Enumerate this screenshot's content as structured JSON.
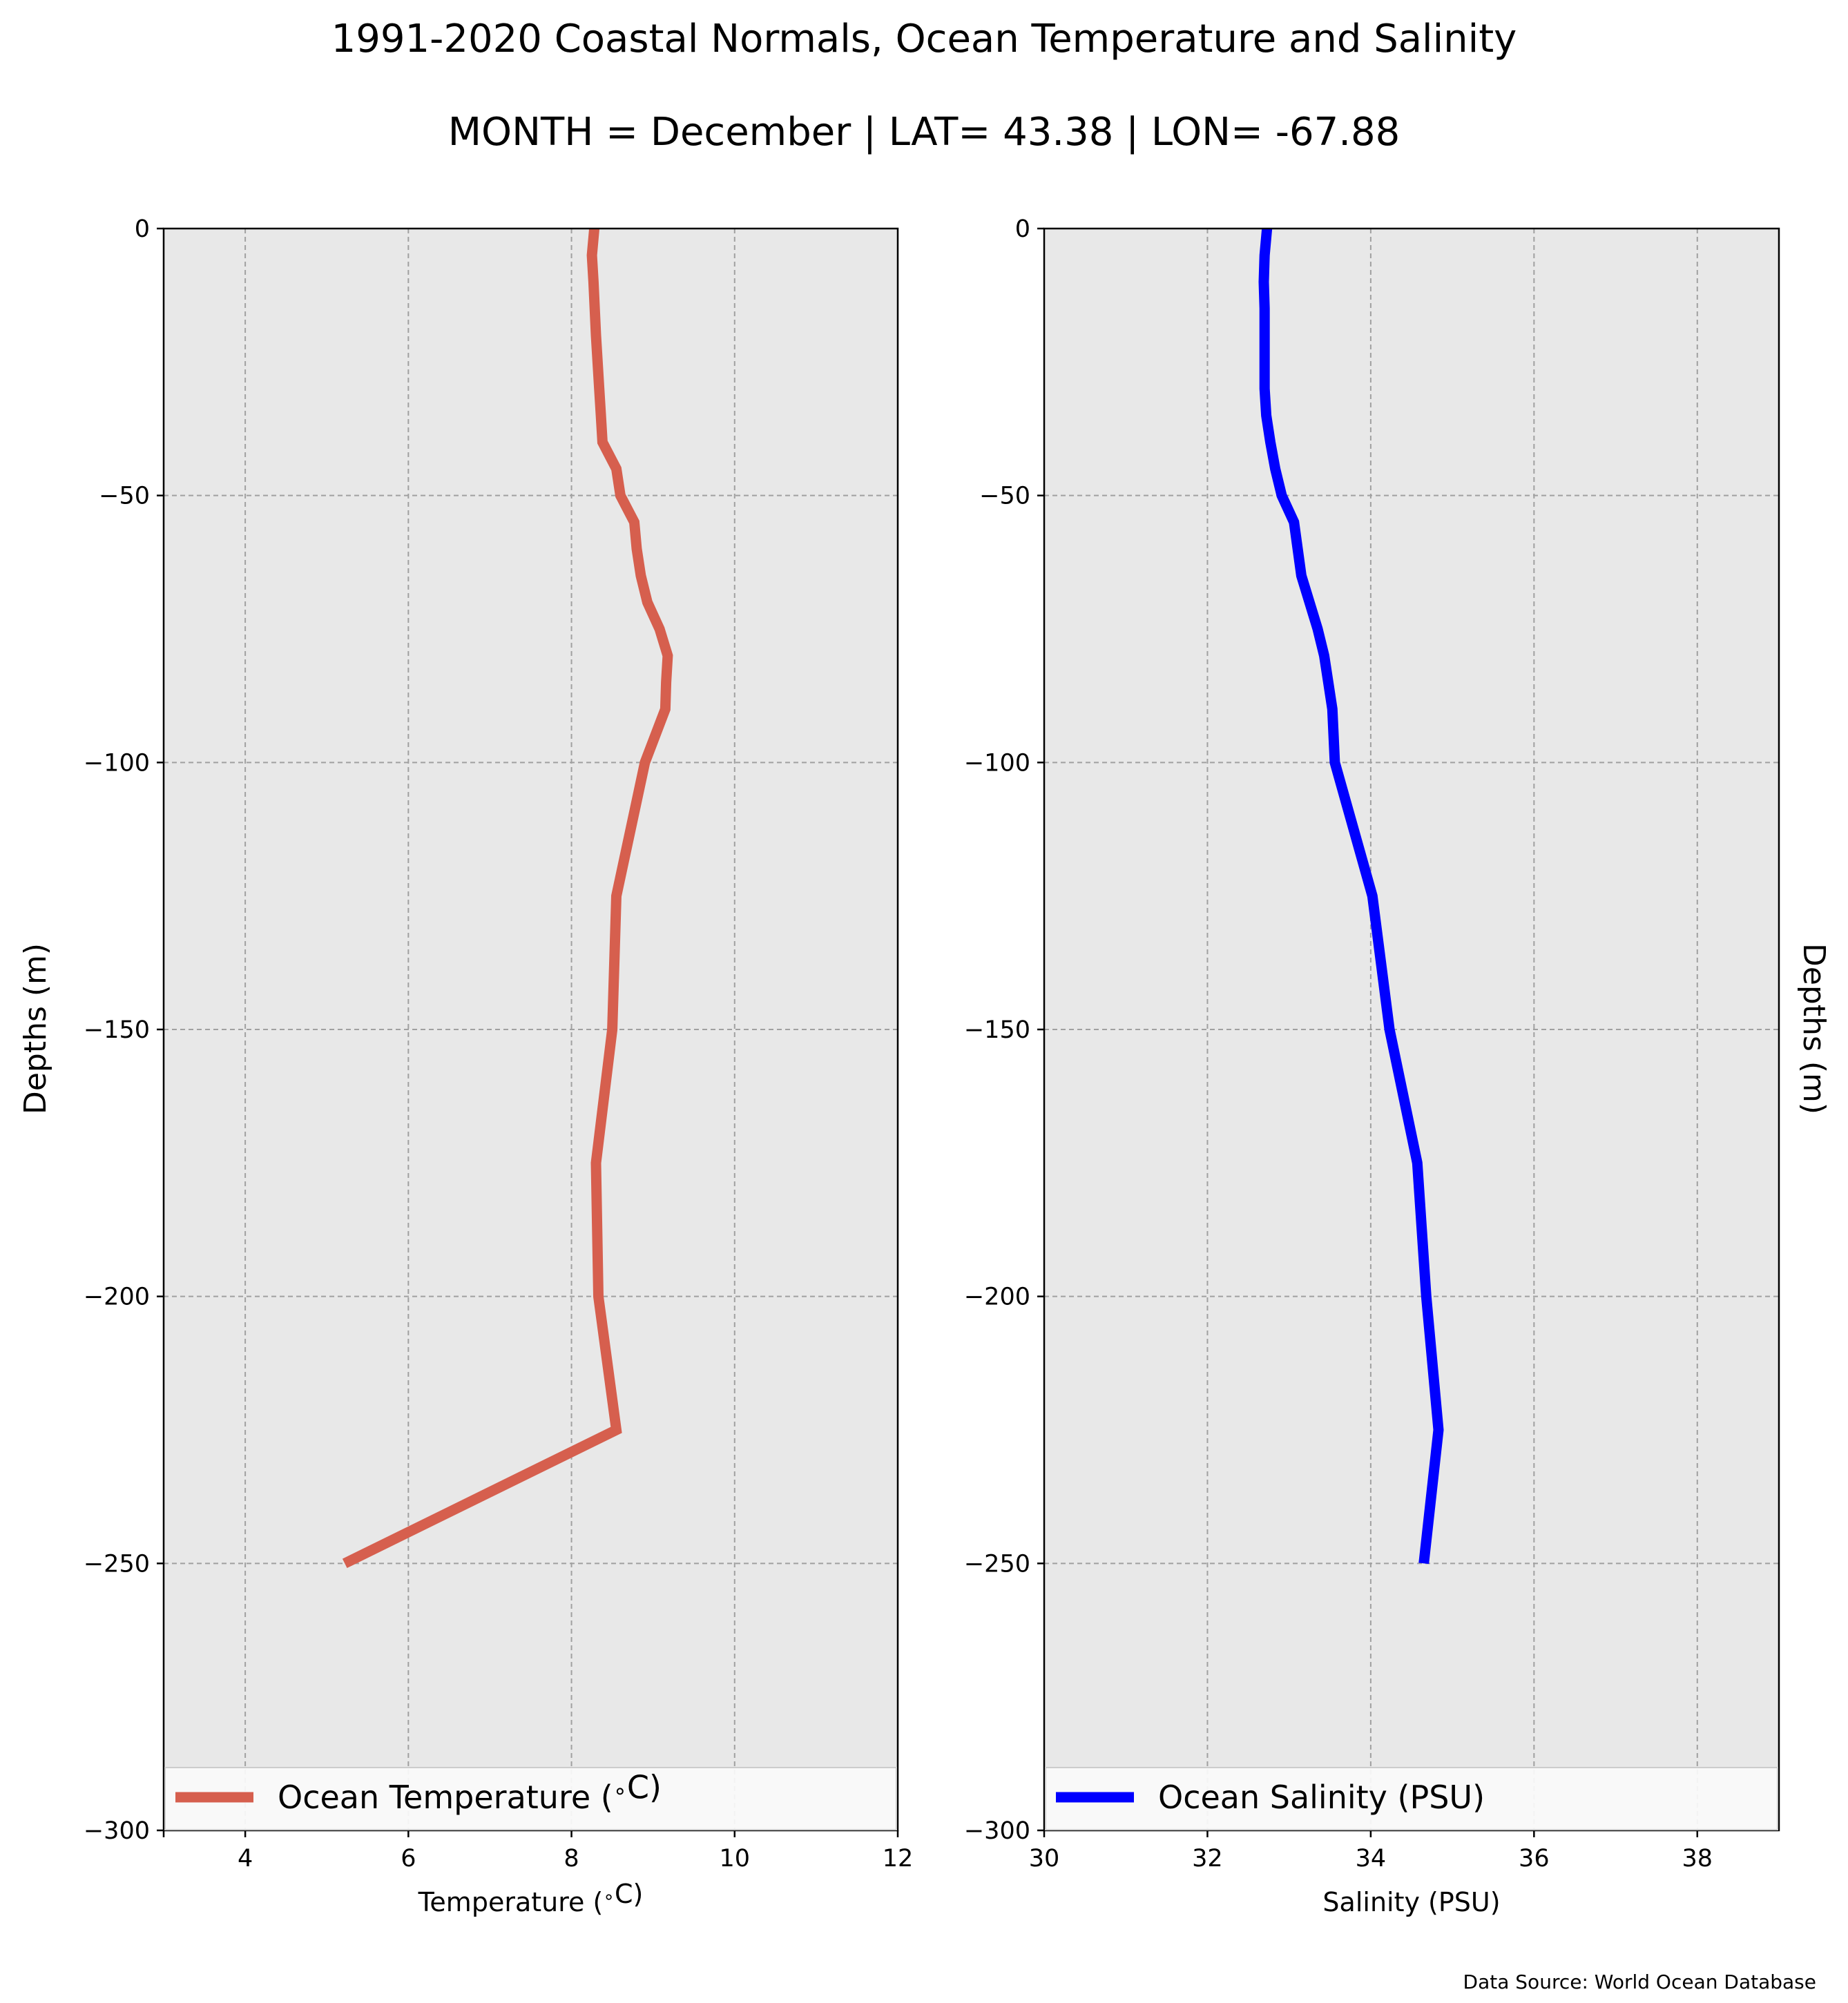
{
  "figure": {
    "title_line1": "1991-2020 Coastal Normals, Ocean Temperature and Salinity",
    "title_line2": "MONTH = December | LAT= 43.38 | LON= -67.88",
    "source_note": "Data Source: World Ocean Database",
    "background_color": "#e8e8e8",
    "grid_color": "#a0a0a0"
  },
  "chart_data": [
    {
      "type": "line",
      "id": "temperature",
      "xlabel": "Temperature ($^\\circ$C)",
      "ylabel": "Depths (m)",
      "xlim": [
        3,
        12
      ],
      "ylim": [
        -300,
        0
      ],
      "xticks": [
        "4",
        "6",
        "8",
        "10",
        "12"
      ],
      "xtick_values": [
        4,
        6,
        8,
        10,
        12
      ],
      "yticks": [
        "0",
        "−50",
        "−100",
        "−150",
        "−200",
        "−250",
        "−300"
      ],
      "ytick_values": [
        0,
        -50,
        -100,
        -150,
        -200,
        -250,
        -300
      ],
      "grid": true,
      "legend_position": "lower center",
      "series": [
        {
          "name": "Ocean Temperature ($^\\circ$C)",
          "color": "#d65f4e",
          "x": [
            8.28,
            8.25,
            8.27,
            8.3,
            8.34,
            8.36,
            8.38,
            8.55,
            8.6,
            8.77,
            8.8,
            8.85,
            8.93,
            9.08,
            9.18,
            9.16,
            9.15,
            8.9,
            8.55,
            8.5,
            8.3,
            8.33,
            8.55,
            5.22
          ],
          "y": [
            0,
            -5,
            -10,
            -20,
            -30,
            -35,
            -40,
            -45,
            -50,
            -55,
            -60,
            -65,
            -70,
            -75,
            -80,
            -85,
            -90,
            -100,
            -125,
            -150,
            -175,
            -200,
            -225,
            -250
          ]
        }
      ]
    },
    {
      "type": "line",
      "id": "salinity",
      "xlabel": "Salinity (PSU)",
      "ylabel": "Depths (m)",
      "xlim": [
        30,
        39
      ],
      "ylim": [
        -300,
        0
      ],
      "xticks": [
        "30",
        "32",
        "34",
        "36",
        "38"
      ],
      "xtick_values": [
        30,
        32,
        34,
        36,
        38
      ],
      "yticks": [
        "0",
        "−50",
        "−100",
        "−150",
        "−200",
        "−250",
        "−300"
      ],
      "ytick_values": [
        0,
        -50,
        -100,
        -150,
        -200,
        -250,
        -300
      ],
      "grid": true,
      "legend_position": "lower center",
      "series": [
        {
          "name": "Ocean Salinity (PSU)",
          "color": "#0000ff",
          "x": [
            32.73,
            32.7,
            32.69,
            32.7,
            32.7,
            32.7,
            32.72,
            32.77,
            32.83,
            32.91,
            33.06,
            33.15,
            33.25,
            33.35,
            33.43,
            33.48,
            33.53,
            33.56,
            34.02,
            34.23,
            34.57,
            34.68,
            34.83,
            34.65
          ],
          "y": [
            0,
            -5,
            -10,
            -15,
            -20,
            -30,
            -35,
            -40,
            -45,
            -50,
            -55,
            -65,
            -70,
            -75,
            -80,
            -85,
            -90,
            -100,
            -125,
            -150,
            -175,
            -200,
            -225,
            -250
          ]
        }
      ]
    }
  ]
}
